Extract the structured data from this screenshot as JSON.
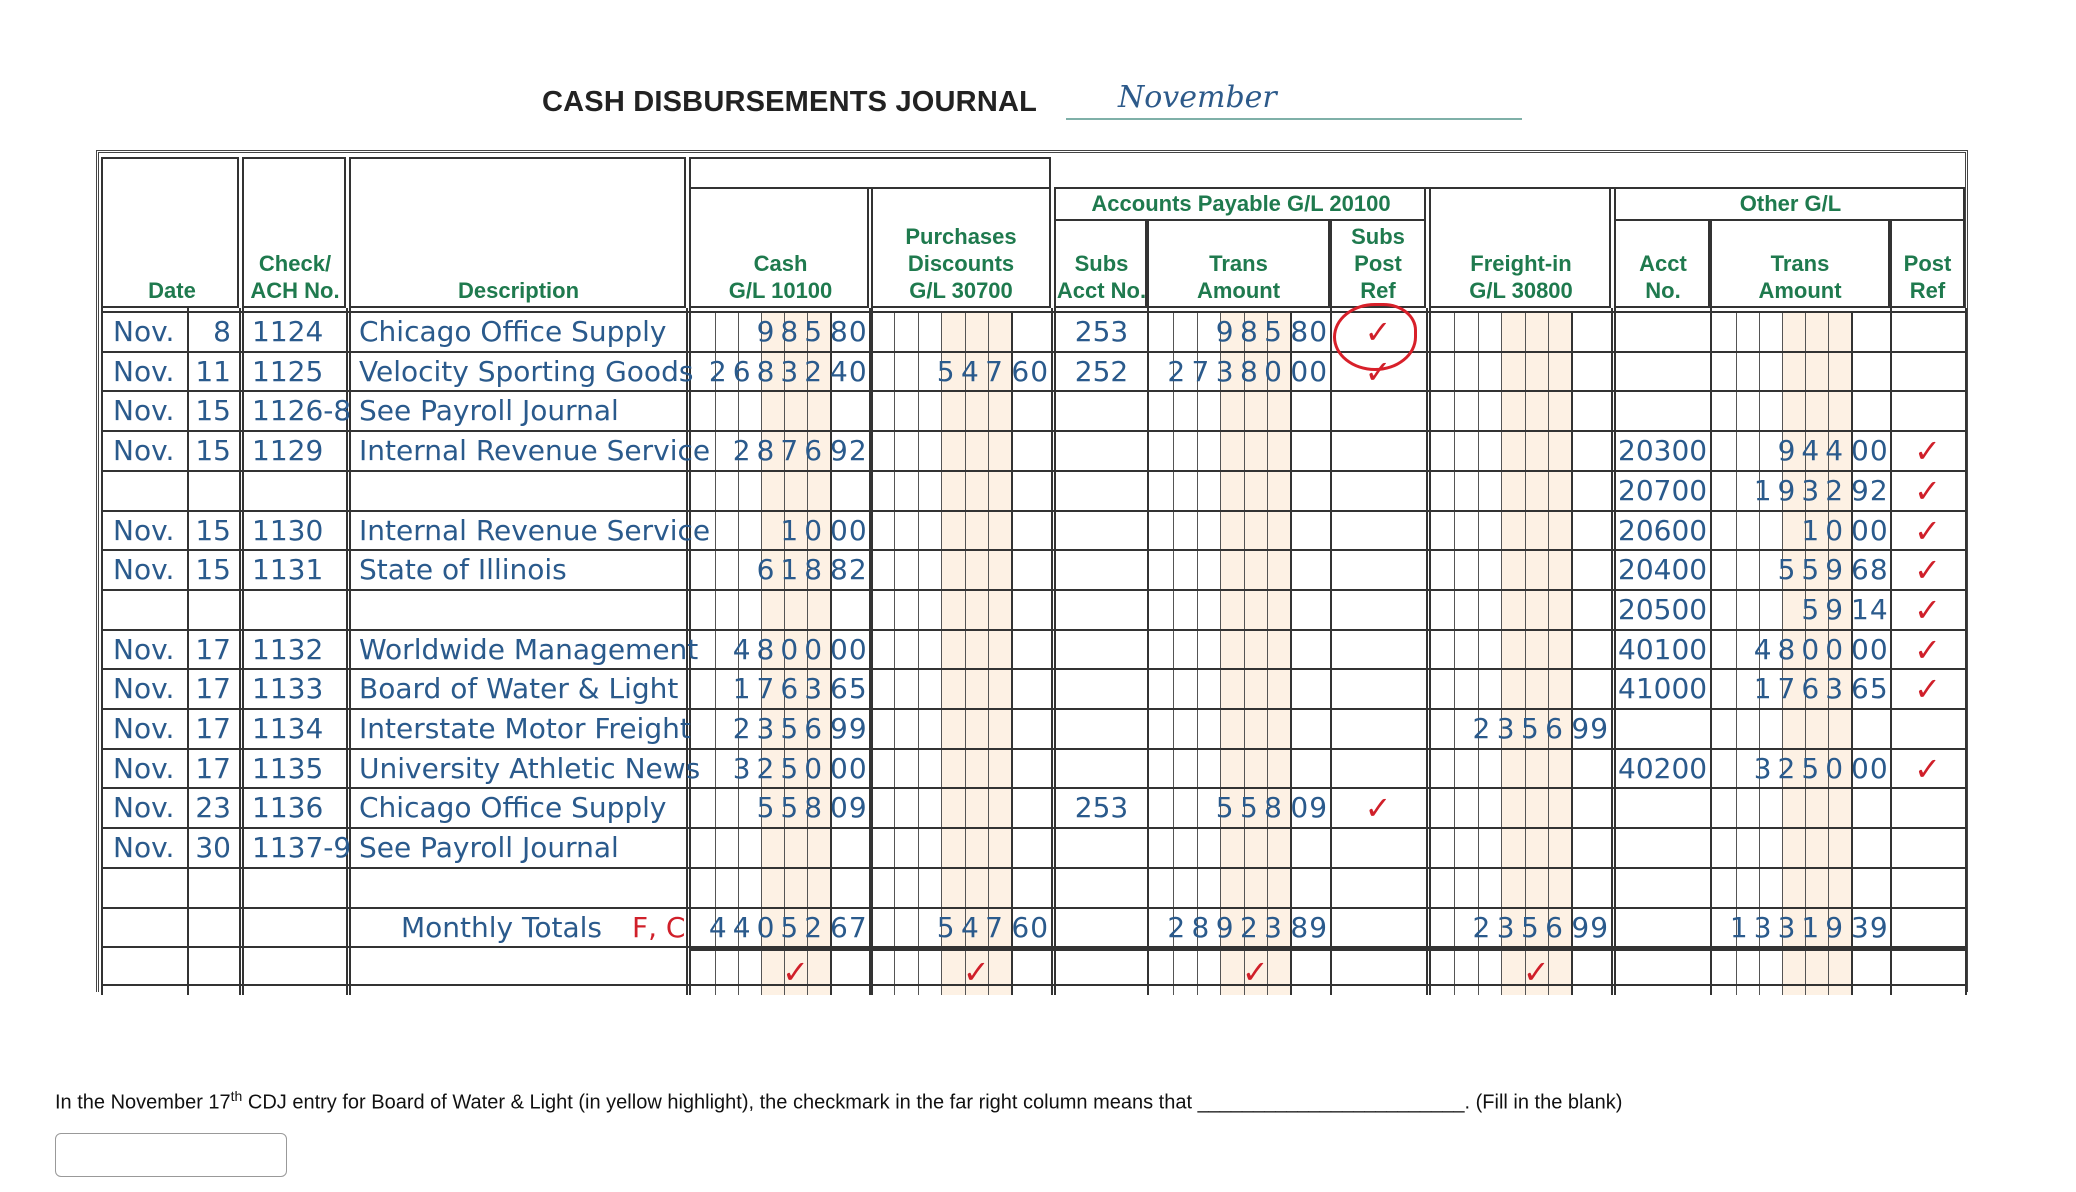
{
  "title": "CASH DISBURSEMENTS JOURNAL",
  "month": "November",
  "headers": {
    "date": "Date",
    "check": [
      "Check/",
      "ACH No."
    ],
    "description": "Description",
    "cash": [
      "Cash",
      "G/L 10100"
    ],
    "purchases_discounts": [
      "Purchases",
      "Discounts",
      "G/L 30700"
    ],
    "accounts_payable": "Accounts Payable G/L 20100",
    "ap_subs_acct": [
      "Subs",
      "Acct No."
    ],
    "ap_trans_amount": [
      "Trans",
      "Amount"
    ],
    "ap_subs_post_ref": [
      "Subs",
      "Post",
      "Ref"
    ],
    "freight_in": [
      "Freight-in",
      "G/L 30800"
    ],
    "other_gl": "Other G/L",
    "other_acct_no": [
      "Acct",
      "No."
    ],
    "other_trans_amount": [
      "Trans",
      "Amount"
    ],
    "other_post_ref": [
      "Post",
      "Ref"
    ]
  },
  "rows": [
    {
      "month": "Nov.",
      "day": "8",
      "check": "1124",
      "desc": "Chicago Office Supply",
      "cash": "985 80",
      "pd": "",
      "ap_acct": "253",
      "ap_amt": "985 80",
      "ap_ref": "✓",
      "freight": "",
      "gl_acct": "",
      "gl_amt": "",
      "gl_ref": ""
    },
    {
      "month": "Nov.",
      "day": "11",
      "check": "1125",
      "desc": "Velocity Sporting Goods",
      "cash": "26832 40",
      "pd": "547 60",
      "ap_acct": "252",
      "ap_amt": "27380 00",
      "ap_ref": "✓",
      "freight": "",
      "gl_acct": "",
      "gl_amt": "",
      "gl_ref": ""
    },
    {
      "month": "Nov.",
      "day": "15",
      "check": "1126-8",
      "desc": "See Payroll Journal",
      "cash": "",
      "pd": "",
      "ap_acct": "",
      "ap_amt": "",
      "ap_ref": "",
      "freight": "",
      "gl_acct": "",
      "gl_amt": "",
      "gl_ref": ""
    },
    {
      "month": "Nov.",
      "day": "15",
      "check": "1129",
      "desc": "Internal Revenue Service",
      "cash": "2876 92",
      "pd": "",
      "ap_acct": "",
      "ap_amt": "",
      "ap_ref": "",
      "freight": "",
      "gl_acct": "20300",
      "gl_amt": "944 00",
      "gl_ref": "✓"
    },
    {
      "month": "",
      "day": "",
      "check": "",
      "desc": "",
      "cash": "",
      "pd": "",
      "ap_acct": "",
      "ap_amt": "",
      "ap_ref": "",
      "freight": "",
      "gl_acct": "20700",
      "gl_amt": "1932 92",
      "gl_ref": "✓"
    },
    {
      "month": "Nov.",
      "day": "15",
      "check": "1130",
      "desc": "Internal Revenue Service",
      "cash": "10 00",
      "pd": "",
      "ap_acct": "",
      "ap_amt": "",
      "ap_ref": "",
      "freight": "",
      "gl_acct": "20600",
      "gl_amt": "10 00",
      "gl_ref": "✓"
    },
    {
      "month": "Nov.",
      "day": "15",
      "check": "1131",
      "desc": "State of Illinois",
      "cash": "618 82",
      "pd": "",
      "ap_acct": "",
      "ap_amt": "",
      "ap_ref": "",
      "freight": "",
      "gl_acct": "20400",
      "gl_amt": "559 68",
      "gl_ref": "✓"
    },
    {
      "month": "",
      "day": "",
      "check": "",
      "desc": "",
      "cash": "",
      "pd": "",
      "ap_acct": "",
      "ap_amt": "",
      "ap_ref": "",
      "freight": "",
      "gl_acct": "20500",
      "gl_amt": "59 14",
      "gl_ref": "✓"
    },
    {
      "month": "Nov.",
      "day": "17",
      "check": "1132",
      "desc": "Worldwide Management",
      "cash": "4800 00",
      "pd": "",
      "ap_acct": "",
      "ap_amt": "",
      "ap_ref": "",
      "freight": "",
      "gl_acct": "40100",
      "gl_amt": "4800 00",
      "gl_ref": "✓"
    },
    {
      "month": "Nov.",
      "day": "17",
      "check": "1133",
      "desc": "Board of Water & Light",
      "cash": "1763 65",
      "pd": "",
      "ap_acct": "",
      "ap_amt": "",
      "ap_ref": "",
      "freight": "",
      "gl_acct": "41000",
      "gl_amt": "1763 65",
      "gl_ref": "✓"
    },
    {
      "month": "Nov.",
      "day": "17",
      "check": "1134",
      "desc": "Interstate Motor Freight",
      "cash": "2356 99",
      "pd": "",
      "ap_acct": "",
      "ap_amt": "",
      "ap_ref": "",
      "freight": "2356 99",
      "gl_acct": "",
      "gl_amt": "",
      "gl_ref": ""
    },
    {
      "month": "Nov.",
      "day": "17",
      "check": "1135",
      "desc": "University Athletic News",
      "cash": "3250 00",
      "pd": "",
      "ap_acct": "",
      "ap_amt": "",
      "ap_ref": "",
      "freight": "",
      "gl_acct": "40200",
      "gl_amt": "3250 00",
      "gl_ref": "✓"
    },
    {
      "month": "Nov.",
      "day": "23",
      "check": "1136",
      "desc": "Chicago Office Supply",
      "cash": "558 09",
      "pd": "",
      "ap_acct": "253",
      "ap_amt": "558 09",
      "ap_ref": "✓",
      "freight": "",
      "gl_acct": "",
      "gl_amt": "",
      "gl_ref": ""
    },
    {
      "month": "Nov.",
      "day": "30",
      "check": "1137-9",
      "desc": "See Payroll Journal",
      "cash": "",
      "pd": "",
      "ap_acct": "",
      "ap_amt": "",
      "ap_ref": "",
      "freight": "",
      "gl_acct": "",
      "gl_amt": "",
      "gl_ref": ""
    },
    {
      "month": "",
      "day": "",
      "check": "",
      "desc": "",
      "cash": "",
      "pd": "",
      "ap_acct": "",
      "ap_amt": "",
      "ap_ref": "",
      "freight": "",
      "gl_acct": "",
      "gl_amt": "",
      "gl_ref": ""
    }
  ],
  "totals": {
    "label": "Monthly Totals",
    "post_ref": "F, C",
    "cash": "44052 67",
    "pd": "547 60",
    "ap_amt": "28923 89",
    "freight": "2356 99",
    "gl_amt": "13319 39"
  },
  "total_checks": {
    "cash": "✓",
    "pd": "✓",
    "ap_amt": "✓",
    "freight": "✓"
  },
  "question": {
    "text_before": "In the November 17",
    "superscript": "th",
    "text_after": " CDJ entry for Board of Water & Light (in yellow highlight), the checkmark in the far right column means that ________________________. (Fill in the blank)",
    "answer_value": "",
    "answer_placeholder": ""
  },
  "colors": {
    "header_green": "#1f7a4e",
    "handwriting_blue": "#2a5a8c",
    "check_red": "#d0202a",
    "column_shade": "#fdf1e4"
  }
}
